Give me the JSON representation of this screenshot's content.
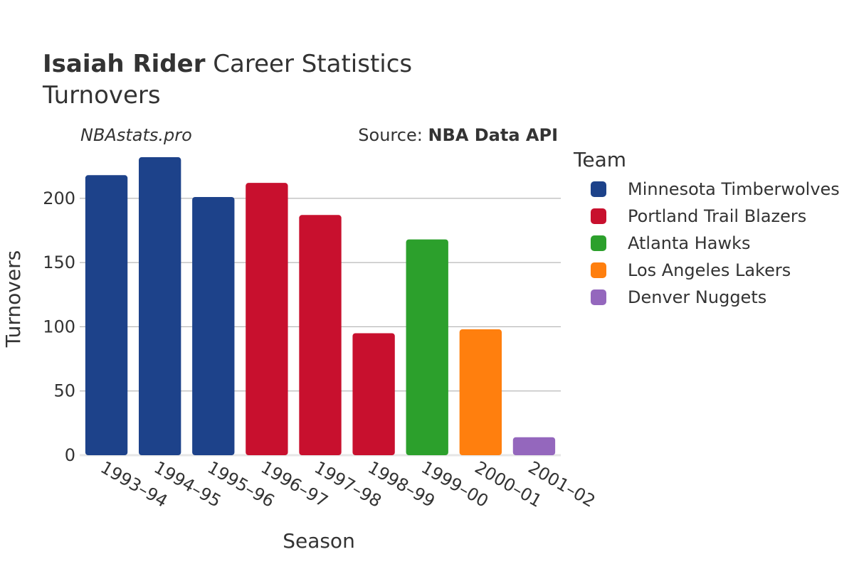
{
  "title": {
    "player": "Isaiah Rider",
    "rest": "Career Statistics",
    "subtitle": "Turnovers"
  },
  "watermark": "NBAstats.pro",
  "source": {
    "prefix": "Source:",
    "name": "NBA Data API"
  },
  "legend": {
    "title": "Team",
    "items": [
      {
        "label": "Minnesota Timberwolves",
        "color": "#1d428a"
      },
      {
        "label": "Portland Trail Blazers",
        "color": "#c8102e"
      },
      {
        "label": "Atlanta Hawks",
        "color": "#2ca02c"
      },
      {
        "label": "Los Angeles Lakers",
        "color": "#ff7f0e"
      },
      {
        "label": "Denver Nuggets",
        "color": "#9467bd"
      }
    ]
  },
  "chart_data": {
    "type": "bar",
    "xlabel": "Season",
    "ylabel": "Turnovers",
    "ylim": [
      0,
      237
    ],
    "yticks": [
      0,
      50,
      100,
      150,
      200
    ],
    "grid": true,
    "legend_position": "right",
    "categories": [
      "1993–94",
      "1994–95",
      "1995–96",
      "1996–97",
      "1997–98",
      "1998–99",
      "1999–00",
      "2000–01",
      "2001–02"
    ],
    "values": [
      218,
      232,
      201,
      212,
      187,
      95,
      168,
      98,
      14
    ],
    "teams": [
      "Minnesota Timberwolves",
      "Minnesota Timberwolves",
      "Minnesota Timberwolves",
      "Portland Trail Blazers",
      "Portland Trail Blazers",
      "Portland Trail Blazers",
      "Atlanta Hawks",
      "Los Angeles Lakers",
      "Denver Nuggets"
    ]
  }
}
